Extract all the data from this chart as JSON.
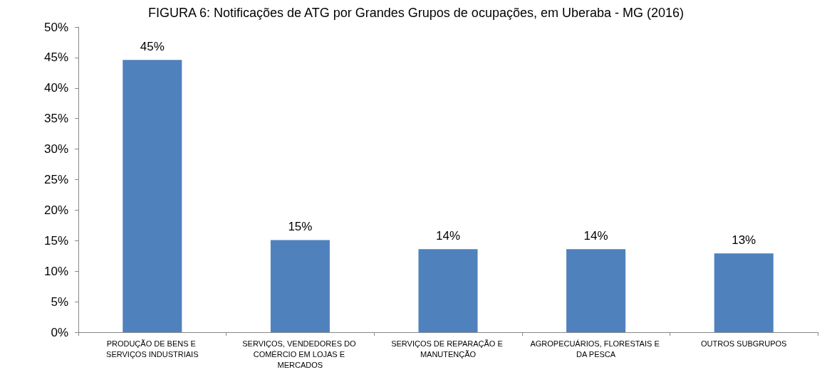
{
  "chart_data": {
    "type": "bar",
    "title": "FIGURA 6: Notificações de ATG por Grandes Grupos de ocupações, em Uberaba - MG (2016)",
    "categories": [
      "PRODUÇÃO DE BENS E SERVIÇOS INDUSTRIAIS",
      "SERVIÇOS, VENDEDORES DO COMÉRCIO EM LOJAS E MERCADOS",
      "SERVIÇOS DE REPARAÇÃO E MANUTENÇÃO",
      "AGROPECUÁRIOS, FLORESTAIS E DA PESCA",
      "OUTROS SUBGRUPOS"
    ],
    "values": [
      44.6,
      15.1,
      13.6,
      13.6,
      12.9
    ],
    "value_labels": [
      "45%",
      "15%",
      "14%",
      "14%",
      "13%"
    ],
    "color": "#4f81bd",
    "ylim": [
      0,
      50
    ],
    "yticks": [
      {
        "value": 0,
        "label": "0%"
      },
      {
        "value": 5,
        "label": "5%"
      },
      {
        "value": 10,
        "label": "10%"
      },
      {
        "value": 15,
        "label": "15%"
      },
      {
        "value": 20,
        "label": "20%"
      },
      {
        "value": 25,
        "label": "25%"
      },
      {
        "value": 30,
        "label": "30%"
      },
      {
        "value": 35,
        "label": "35%"
      },
      {
        "value": 40,
        "label": "40%"
      },
      {
        "value": 45,
        "label": "45%"
      },
      {
        "value": 50,
        "label": "50%"
      }
    ],
    "grid": false
  }
}
